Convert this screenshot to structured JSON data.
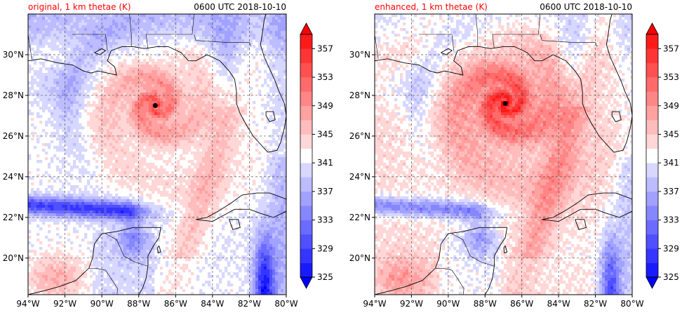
{
  "palette": {
    "levels": [
      325,
      327,
      329,
      331,
      333,
      335,
      337,
      339,
      341,
      343,
      345,
      347,
      349,
      351,
      353,
      355,
      357
    ],
    "colors": [
      "#1a1aff",
      "#3535ff",
      "#5050ff",
      "#6b6bff",
      "#8686ff",
      "#a1a1ff",
      "#bcbcff",
      "#d7d7ff",
      "#ffffff",
      "#ffd7d7",
      "#ffbcbc",
      "#ffa1a1",
      "#ff8686",
      "#ff6b6b",
      "#ff5050",
      "#ff3535",
      "#ff1a1a"
    ],
    "under_color": "#0000ff",
    "over_color": "#ff0000",
    "map_lines": "#000000",
    "title_color": "#ff0000"
  },
  "panels": [
    {
      "title": "original, 1 km thetae (K)",
      "time": "0600 UTC 2018-10-10",
      "center_marker": [
        -87.1,
        27.5
      ]
    },
    {
      "title": "enhanced, 1 km thetae (K)",
      "time": "0600 UTC 2018-10-10",
      "center_marker": [
        -86.9,
        27.6
      ]
    }
  ],
  "chart_data": {
    "type": "heatmap",
    "projection": "lat-lon",
    "lon_range": [
      -94,
      -80
    ],
    "lat_range": [
      18.2,
      32
    ],
    "x_ticks": [
      "94°W",
      "92°W",
      "90°W",
      "88°W",
      "86°W",
      "84°W",
      "82°W",
      "80°W"
    ],
    "x_tick_values": [
      -94,
      -92,
      -90,
      -88,
      -86,
      -84,
      -82,
      -80
    ],
    "y_ticks": [
      "20°N",
      "22°N",
      "24°N",
      "26°N",
      "28°N",
      "30°N"
    ],
    "y_tick_values": [
      20,
      22,
      24,
      26,
      28,
      30
    ],
    "grid": true,
    "colorbar": {
      "ticks": [
        325,
        329,
        333,
        337,
        341,
        345,
        349,
        353,
        357
      ],
      "tick_labels": [
        "325",
        "329",
        "333",
        "337",
        "341",
        "345",
        "349",
        "353",
        "357"
      ],
      "range": [
        325,
        359
      ],
      "extend": "both"
    },
    "series": [
      {
        "name": "original",
        "storm_center": [
          -87.1,
          27.5
        ],
        "min": 325,
        "max": 359
      },
      {
        "name": "enhanced",
        "storm_center": [
          -86.9,
          27.6
        ],
        "min": 325,
        "max": 359
      }
    ]
  }
}
